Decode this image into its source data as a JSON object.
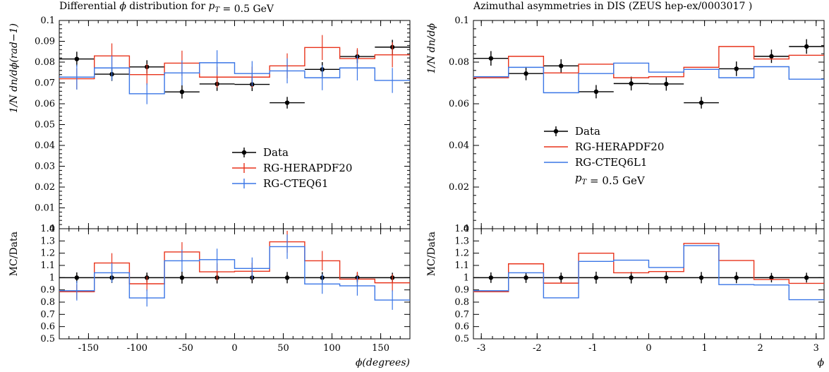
{
  "colors": {
    "data": "#000000",
    "herapdf": "#e8341c",
    "cteq": "#3a76e6"
  },
  "chart_data": [
    {
      "type": "line",
      "title": "Differential ϕ distribution for p_T = 0.5 GeV",
      "xlabel": "ϕ(degrees)",
      "ylabel": "1/N dn/dϕ(rad−1)",
      "ratio_ylabel": "MC/Data",
      "xlim": [
        -180,
        180
      ],
      "ylim": [
        0,
        0.1
      ],
      "ratio_ylim": [
        0.5,
        1.4
      ],
      "xticks": [
        -150,
        -100,
        -50,
        0,
        50,
        100,
        150
      ],
      "xtick_labels": [
        "-150",
        "-100",
        "-50",
        "0",
        "50",
        "100",
        "150"
      ],
      "yticks": [
        0,
        0.01,
        0.02,
        0.03,
        0.04,
        0.05,
        0.06,
        0.07,
        0.08,
        0.09,
        0.1
      ],
      "ytick_labels": [
        "0",
        "0.01",
        "0.02",
        "0.03",
        "0.04",
        "0.05",
        "0.06",
        "0.07",
        "0.08",
        "0.09",
        "0.1"
      ],
      "ratio_yticks": [
        0.5,
        0.6,
        0.7,
        0.8,
        0.9,
        1,
        1.1,
        1.2,
        1.3,
        1.4
      ],
      "ratio_ytick_labels": [
        "0.5",
        "0.6",
        "0.7",
        "0.8",
        "0.9",
        "1",
        "1.1",
        "1.2",
        "1.3",
        "1.4"
      ],
      "bin_edges": [
        -180,
        -144,
        -108,
        -72,
        -36,
        0,
        36,
        72,
        108,
        144,
        180
      ],
      "legend_position": "center-right",
      "legend_note": "",
      "series": [
        {
          "name": "Data",
          "style": "points",
          "color_key": "data",
          "values": [
            0.0815,
            0.0742,
            0.0777,
            0.0657,
            0.0695,
            0.0693,
            0.0605,
            0.0765,
            0.0827,
            0.0872
          ],
          "errors": [
            0.0035,
            0.0032,
            0.0032,
            0.0032,
            0.0033,
            0.0032,
            0.0028,
            0.0035,
            0.0032,
            0.0035
          ]
        },
        {
          "name": "RG-HERAPDF20",
          "style": "step",
          "color_key": "herapdf",
          "values": [
            0.072,
            0.083,
            0.074,
            0.0795,
            0.0728,
            0.0728,
            0.0782,
            0.087,
            0.0817,
            0.0835
          ],
          "errors": [
            0.005,
            0.006,
            0.005,
            0.006,
            0.005,
            0.005,
            0.006,
            0.006,
            0.005,
            0.006
          ],
          "ratio": [
            0.885,
            1.12,
            0.95,
            1.21,
            1.048,
            1.052,
            1.293,
            1.138,
            0.988,
            0.958
          ],
          "ratio_errors": [
            0.06,
            0.08,
            0.06,
            0.08,
            0.07,
            0.07,
            0.09,
            0.08,
            0.06,
            0.07
          ]
        },
        {
          "name": "RG-CTEQ61",
          "style": "step",
          "color_key": "cteq",
          "values": [
            0.0728,
            0.0772,
            0.0648,
            0.0748,
            0.0797,
            0.0745,
            0.0758,
            0.0725,
            0.0772,
            0.0712
          ],
          "errors": [
            0.006,
            0.006,
            0.005,
            0.006,
            0.006,
            0.006,
            0.006,
            0.006,
            0.006,
            0.006
          ],
          "ratio": [
            0.893,
            1.04,
            0.834,
            1.138,
            1.147,
            1.075,
            1.253,
            0.948,
            0.933,
            0.817
          ],
          "ratio_errors": [
            0.08,
            0.08,
            0.07,
            0.09,
            0.09,
            0.09,
            0.1,
            0.08,
            0.08,
            0.08
          ]
        }
      ]
    },
    {
      "type": "line",
      "title": "Azimuthal asymmetries in DIS (ZEUS hep-ex/0003017 )",
      "xlabel": "ϕ",
      "ylabel": "1/N dn/dϕ",
      "ratio_ylabel": "MC/Data",
      "xlim": [
        -3.1416,
        3.1416
      ],
      "ylim": [
        0,
        0.1
      ],
      "ratio_ylim": [
        0.5,
        1.4
      ],
      "xticks": [
        -3,
        -2,
        -1,
        0,
        1,
        2,
        3
      ],
      "xtick_labels": [
        "-3",
        "-2",
        "-1",
        "0",
        "1",
        "2",
        "3"
      ],
      "yticks": [
        0,
        0.02,
        0.04,
        0.06,
        0.08,
        0.1
      ],
      "ytick_labels": [
        "0",
        "0.02",
        "0.04",
        "0.06",
        "0.08",
        "0.1"
      ],
      "ratio_yticks": [
        0.5,
        0.6,
        0.7,
        0.8,
        0.9,
        1,
        1.1,
        1.2,
        1.3,
        1.4
      ],
      "ratio_ytick_labels": [
        "0.5",
        "0.6",
        "0.7",
        "0.8",
        "0.9",
        "1",
        "1.1",
        "1.2",
        "1.3",
        "1.4"
      ],
      "bin_edges": [
        -3.1416,
        -2.5133,
        -1.885,
        -1.2566,
        -0.6283,
        0,
        0.6283,
        1.2566,
        1.885,
        2.5133,
        3.1416
      ],
      "legend_position": "center-left",
      "legend_note": "p_T = 0.5 GeV",
      "series": [
        {
          "name": "Data",
          "style": "points",
          "color_key": "data",
          "values": [
            0.0818,
            0.0745,
            0.0782,
            0.0658,
            0.0697,
            0.0695,
            0.0605,
            0.0768,
            0.0828,
            0.0875
          ],
          "errors": [
            0.0035,
            0.0032,
            0.0032,
            0.0032,
            0.0033,
            0.0032,
            0.0028,
            0.0035,
            0.0032,
            0.0035
          ]
        },
        {
          "name": "RG-HERAPDF20",
          "style": "step",
          "color_key": "herapdf",
          "values": [
            0.0725,
            0.0828,
            0.0748,
            0.079,
            0.0725,
            0.073,
            0.0775,
            0.0875,
            0.0815,
            0.0833
          ],
          "ratio": [
            0.885,
            1.113,
            0.955,
            1.2,
            1.04,
            1.05,
            1.28,
            1.14,
            0.985,
            0.953
          ]
        },
        {
          "name": "RG-CTEQ6L1",
          "style": "step",
          "color_key": "cteq",
          "values": [
            0.073,
            0.0775,
            0.0653,
            0.0745,
            0.0795,
            0.0752,
            0.0765,
            0.0725,
            0.0778,
            0.0718
          ],
          "ratio": [
            0.893,
            1.04,
            0.835,
            1.133,
            1.143,
            1.083,
            1.262,
            0.943,
            0.94,
            0.82
          ]
        }
      ]
    }
  ]
}
